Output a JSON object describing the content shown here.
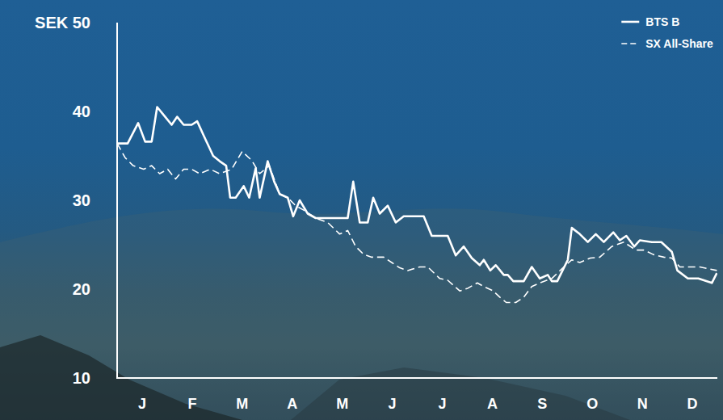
{
  "chart_data": {
    "type": "line",
    "xlim": [
      0,
      12
    ],
    "xticks": [
      {
        "value": 0.5,
        "label": "J"
      },
      {
        "value": 1.5,
        "label": "F"
      },
      {
        "value": 2.5,
        "label": "M"
      },
      {
        "value": 3.5,
        "label": "A"
      },
      {
        "value": 4.5,
        "label": "M"
      },
      {
        "value": 5.5,
        "label": "J"
      },
      {
        "value": 6.5,
        "label": "J"
      },
      {
        "value": 7.5,
        "label": "A"
      },
      {
        "value": 8.5,
        "label": "S"
      },
      {
        "value": 9.5,
        "label": "O"
      },
      {
        "value": 10.5,
        "label": "N"
      },
      {
        "value": 11.5,
        "label": "D"
      }
    ],
    "ylim": [
      10,
      50
    ],
    "yticks": [
      10,
      20,
      30,
      40,
      {
        "value": 50,
        "label": "SEK 50"
      }
    ],
    "grid": false,
    "legend": "upper right",
    "series": [
      {
        "name": "BTS B",
        "color": "#ffffff",
        "line_style": "solid",
        "x": [
          0,
          0.21,
          0.42,
          0.56,
          0.69,
          0.8,
          0.96,
          1.09,
          1.2,
          1.33,
          1.49,
          1.6,
          1.73,
          1.92,
          2.05,
          2.18,
          2.26,
          2.37,
          2.53,
          2.64,
          2.77,
          2.85,
          3.01,
          3.14,
          3.25,
          3.41,
          3.52,
          3.65,
          3.81,
          3.97,
          4.61,
          4.72,
          4.85,
          5.01,
          5.12,
          5.25,
          5.41,
          5.57,
          5.73,
          5.89,
          6.13,
          6.29,
          6.45,
          6.61,
          6.77,
          6.93,
          7.09,
          7.25,
          7.33,
          7.46,
          7.57,
          7.73,
          7.81,
          7.92,
          8.13,
          8.29,
          8.45,
          8.61,
          8.69,
          8.8,
          9.01,
          9.09,
          9.25,
          9.41,
          9.57,
          9.73,
          9.92,
          10.05,
          10.18,
          10.34,
          10.45,
          10.69,
          10.88,
          11.09,
          11.2,
          11.41,
          11.62,
          11.89,
          11.99
        ],
        "values": [
          36.4,
          36.4,
          38.7,
          36.6,
          36.6,
          40.5,
          39.4,
          38.5,
          39.4,
          38.5,
          38.5,
          38.9,
          37.3,
          35.0,
          34.4,
          33.9,
          30.3,
          30.3,
          31.6,
          30.3,
          33.6,
          30.3,
          34.4,
          32.1,
          30.7,
          30.3,
          28.2,
          30.0,
          28.5,
          28.0,
          28.0,
          32.1,
          27.5,
          27.5,
          30.3,
          28.5,
          29.4,
          27.5,
          28.2,
          28.2,
          28.2,
          26.0,
          26.0,
          26.0,
          23.8,
          24.8,
          23.5,
          22.7,
          23.3,
          22.1,
          22.7,
          21.6,
          21.6,
          20.9,
          20.9,
          22.5,
          21.2,
          21.6,
          20.9,
          20.9,
          23.3,
          26.9,
          26.2,
          25.3,
          26.2,
          25.3,
          26.4,
          25.5,
          26.0,
          24.8,
          25.5,
          25.3,
          25.3,
          24.2,
          22.1,
          21.2,
          21.2,
          20.7,
          21.8
        ]
      },
      {
        "name": "SX All-Share",
        "color": "#ffffff",
        "line_style": "dashed",
        "x": [
          0,
          0.16,
          0.32,
          0.53,
          0.69,
          0.85,
          1.01,
          1.17,
          1.33,
          1.49,
          1.65,
          1.86,
          2.05,
          2.29,
          2.5,
          2.69,
          2.85,
          3.04,
          3.25,
          3.41,
          3.57,
          3.73,
          3.97,
          4.21,
          4.45,
          4.61,
          4.77,
          4.93,
          5.09,
          5.33,
          5.49,
          5.65,
          5.81,
          6.05,
          6.21,
          6.45,
          6.61,
          6.85,
          7.01,
          7.2,
          7.33,
          7.52,
          7.65,
          7.78,
          7.97,
          8.13,
          8.29,
          8.45,
          8.69,
          8.93,
          9.09,
          9.25,
          9.46,
          9.65,
          9.89,
          10.13,
          10.37,
          10.53,
          10.72,
          10.93,
          11.09,
          11.25,
          11.41,
          11.65,
          11.99
        ],
        "values": [
          36.4,
          34.8,
          33.9,
          33.5,
          33.9,
          33.0,
          33.5,
          32.4,
          33.5,
          33.5,
          33.0,
          33.5,
          33.0,
          33.5,
          35.5,
          34.5,
          33.0,
          33.9,
          30.7,
          30.3,
          29.4,
          28.9,
          28.0,
          27.5,
          26.2,
          26.6,
          24.8,
          23.9,
          23.6,
          23.6,
          23.0,
          22.4,
          22.1,
          22.5,
          22.5,
          21.2,
          21.0,
          19.8,
          20.1,
          20.7,
          20.3,
          19.8,
          19.1,
          18.5,
          18.5,
          19.1,
          20.3,
          20.7,
          21.2,
          22.5,
          23.3,
          23.0,
          23.5,
          23.6,
          24.8,
          25.3,
          24.4,
          24.4,
          23.9,
          23.6,
          23.5,
          22.5,
          22.5,
          22.5,
          22.1
        ]
      }
    ]
  }
}
